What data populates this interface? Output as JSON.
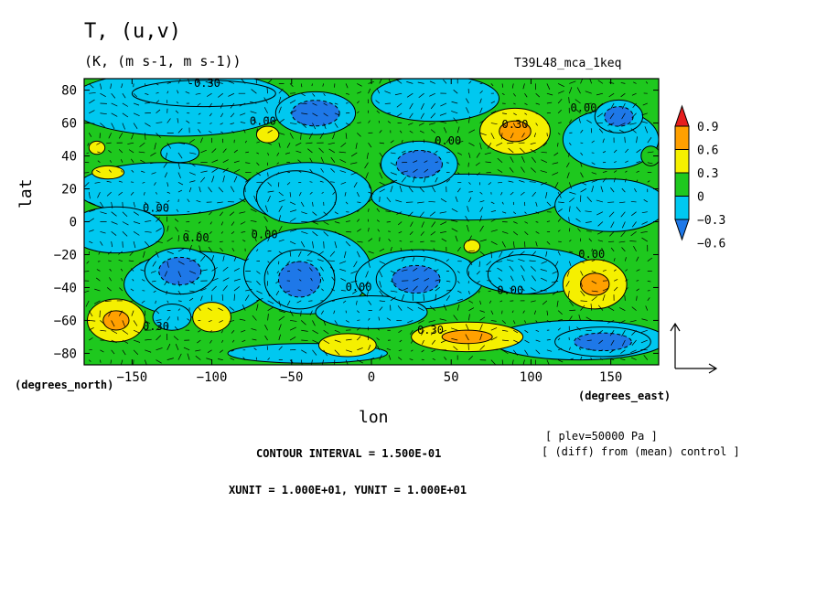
{
  "header": {
    "title": "T, (u,v)",
    "subtitle": "(K, (m s-1, m s-1))",
    "run_name": "T39L48_mca_1keq"
  },
  "footer": {
    "plev": "[ plev=50000 Pa ]",
    "diff": "[ (diff) from (mean) control ]",
    "contour_interval": "CONTOUR INTERVAL = 1.500E-01",
    "units": "XUNIT = 1.000E+01, YUNIT = 1.000E+01"
  },
  "chart_data": {
    "type": "heatmap",
    "title": "T, (u,v)",
    "subtitle": "(K, (m s-1, m s-1))",
    "xlabel": "lon",
    "ylabel": "lat",
    "x_units": "(degrees_east)",
    "y_units": "(degrees_north)",
    "xlim": [
      -180,
      180
    ],
    "ylim": [
      -87,
      87
    ],
    "xticks": [
      -150,
      -100,
      -50,
      0,
      50,
      100,
      150
    ],
    "yticks": [
      -80,
      -60,
      -40,
      -20,
      0,
      20,
      40,
      60,
      80
    ],
    "colorbar": {
      "levels": [
        -0.6,
        -0.3,
        0,
        0.3,
        0.6,
        0.9
      ],
      "labels": [
        "-0.6",
        "-0.3",
        "0",
        "0.3",
        "0.6",
        "0.9"
      ],
      "colors": [
        "#1e78e8",
        "#00c8f0",
        "#1ec81e",
        "#f5f000",
        "#ffa000",
        "#e61e1e"
      ]
    },
    "contour_labels": [
      {
        "text": "-0.30",
        "lon": -105,
        "lat": 82
      },
      {
        "text": "0.00",
        "lon": -68,
        "lat": 59
      },
      {
        "text": "0.00",
        "lon": 48,
        "lat": 47
      },
      {
        "text": "0.30",
        "lon": 90,
        "lat": 57
      },
      {
        "text": "0.00",
        "lon": 133,
        "lat": 67
      },
      {
        "text": "0.00",
        "lon": -135,
        "lat": 6
      },
      {
        "text": "0.00",
        "lon": -110,
        "lat": -12
      },
      {
        "text": "0.00",
        "lon": -67,
        "lat": -10
      },
      {
        "text": "0.00",
        "lon": -8,
        "lat": -42
      },
      {
        "text": "0.00",
        "lon": 87,
        "lat": -44
      },
      {
        "text": "0.00",
        "lon": 138,
        "lat": -22
      },
      {
        "text": "0.30",
        "lon": 37,
        "lat": -68
      },
      {
        "text": "0.30",
        "lon": -135,
        "lat": -66
      }
    ],
    "anomaly_regions": [
      {
        "lon": -35,
        "lat": 66,
        "rx": 25,
        "ry": 13,
        "value": -0.6
      },
      {
        "lon": -105,
        "lat": 78,
        "rx": 45,
        "ry": 8,
        "value": -0.3
      },
      {
        "lon": 30,
        "lat": 35,
        "rx": 24,
        "ry": 14,
        "value": -0.6
      },
      {
        "lon": 155,
        "lat": 64,
        "rx": 15,
        "ry": 10,
        "value": -0.6
      },
      {
        "lon": -120,
        "lat": 42,
        "rx": 12,
        "ry": 6,
        "value": -0.3
      },
      {
        "lon": -47,
        "lat": 15,
        "rx": 25,
        "ry": 16,
        "value": -0.3
      },
      {
        "lon": -120,
        "lat": -30,
        "rx": 22,
        "ry": 14,
        "value": -0.6
      },
      {
        "lon": -45,
        "lat": -35,
        "rx": 22,
        "ry": 18,
        "value": -0.6
      },
      {
        "lon": 28,
        "lat": -35,
        "rx": 25,
        "ry": 14,
        "value": -0.6
      },
      {
        "lon": 95,
        "lat": -32,
        "rx": 22,
        "ry": 12,
        "value": -0.3
      },
      {
        "lon": 145,
        "lat": -73,
        "rx": 30,
        "ry": 9,
        "value": -0.6
      },
      {
        "lon": -125,
        "lat": -58,
        "rx": 12,
        "ry": 8,
        "value": -0.3
      },
      {
        "lon": 90,
        "lat": 55,
        "rx": 22,
        "ry": 14,
        "value": 0.6
      },
      {
        "lon": -160,
        "lat": -60,
        "rx": 18,
        "ry": 13,
        "value": 0.6
      },
      {
        "lon": 140,
        "lat": -38,
        "rx": 20,
        "ry": 15,
        "value": 0.6
      },
      {
        "lon": 60,
        "lat": -70,
        "rx": 35,
        "ry": 9,
        "value": 0.6
      },
      {
        "lon": -65,
        "lat": 53,
        "rx": 7,
        "ry": 5,
        "value": 0.3
      },
      {
        "lon": -165,
        "lat": 30,
        "rx": 10,
        "ry": 4,
        "value": 0.3
      },
      {
        "lon": -172,
        "lat": 45,
        "rx": 5,
        "ry": 4,
        "value": 0.3
      },
      {
        "lon": -100,
        "lat": -58,
        "rx": 12,
        "ry": 9,
        "value": 0.3
      },
      {
        "lon": -15,
        "lat": -75,
        "rx": 18,
        "ry": 7,
        "value": 0.3
      },
      {
        "lon": 63,
        "lat": -15,
        "rx": 5,
        "ry": 4,
        "value": 0.3
      },
      {
        "lon": 175,
        "lat": 40,
        "rx": 6,
        "ry": 6,
        "value": 0.0
      }
    ]
  }
}
